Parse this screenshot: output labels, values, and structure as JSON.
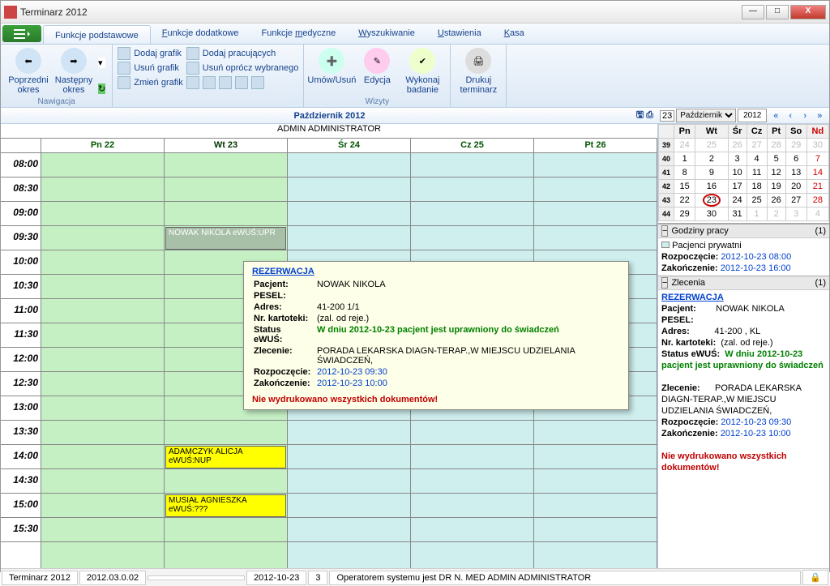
{
  "window": {
    "title": "Terminarz 2012"
  },
  "tabs": [
    "Funkcje podstawowe",
    "Funkcje dodatkowe",
    "Funkcje medyczne",
    "Wyszukiwanie",
    "Ustawienia",
    "Kasa"
  ],
  "ribbon": {
    "prev": "Poprzedni okres",
    "next": "Następny okres",
    "nav_label": "Nawigacja",
    "dodaj_grafik": "Dodaj grafik",
    "usun_grafik": "Usuń grafik",
    "zmien_grafik": "Zmień grafik",
    "dodaj_prac": "Dodaj pracujących",
    "usun_oprocz": "Usuń oprócz wybranego",
    "umow": "Umów/Usuń",
    "edycja": "Edycja",
    "wykonaj": "Wykonaj badanie",
    "drukuj": "Drukuj terminarz",
    "wizyty_label": "Wizyty"
  },
  "month_label": "Październik 2012",
  "admin_header": "ADMIN ADMINISTRATOR",
  "days": [
    "Pn 22",
    "Wt 23",
    "Śr 24",
    "Cz 25",
    "Pt 26"
  ],
  "times": [
    "08:00",
    "08:30",
    "09:00",
    "09:30",
    "10:00",
    "10:30",
    "11:00",
    "11:30",
    "12:00",
    "12:30",
    "13:00",
    "13:30",
    "14:00",
    "14:30",
    "15:00",
    "15:30"
  ],
  "appointments": [
    {
      "col": 1,
      "row": 3,
      "cls": "grey",
      "text": "NOWAK NIKOLA eWUŚ:UPR"
    },
    {
      "col": 1,
      "row": 12,
      "cls": "yellow",
      "text": "ADAMCZYK ALICJA eWUŚ:NUP"
    },
    {
      "col": 1,
      "row": 14,
      "cls": "yellow",
      "text": "MUSIAŁ AGNIESZKA eWUŚ:???"
    }
  ],
  "tooltip": {
    "title": "REZERWACJA",
    "pacjent_k": "Pacjent:",
    "pacjent_v": "NOWAK NIKOLA",
    "pesel_k": "PESEL:",
    "pesel_v": "",
    "adres_k": "Adres:",
    "adres_v": "41-200                                               1/1",
    "kart_k": "Nr. kartoteki:",
    "kart_v": "(zal. od reje.)",
    "ewus_k": "Status eWUŚ:",
    "ewus_v": "W dniu 2012-10-23 pacjent jest uprawniony do świadczeń",
    "zlec_k": "Zlecenie:",
    "zlec_v": "PORADA LEKARSKA DIAGN-TERAP.,W MIEJSCU UDZIELANIA ŚWIADCZEŃ,",
    "start_k": "Rozpoczęcie:",
    "start_v": "2012-10-23 09:30",
    "end_k": "Zakończenie:",
    "end_v": "2012-10-23 10:00",
    "warn": "Nie wydrukowano wszystkich dokumentów!"
  },
  "minical": {
    "date_selector_day": "23",
    "month": "Październik",
    "year": "2012",
    "dow": [
      "Pn",
      "Wt",
      "Śr",
      "Cz",
      "Pt",
      "So",
      "Nd"
    ],
    "weeks": [
      {
        "wk": "39",
        "days": [
          "24",
          "25",
          "26",
          "27",
          "28",
          "29",
          "30"
        ],
        "grey": true
      },
      {
        "wk": "40",
        "days": [
          "1",
          "2",
          "3",
          "4",
          "5",
          "6",
          "7"
        ]
      },
      {
        "wk": "41",
        "days": [
          "8",
          "9",
          "10",
          "11",
          "12",
          "13",
          "14"
        ]
      },
      {
        "wk": "42",
        "days": [
          "15",
          "16",
          "17",
          "18",
          "19",
          "20",
          "21"
        ]
      },
      {
        "wk": "43",
        "days": [
          "22",
          "23",
          "24",
          "25",
          "26",
          "27",
          "28"
        ],
        "today": 1
      },
      {
        "wk": "44",
        "days": [
          "29",
          "30",
          "31",
          "1",
          "2",
          "3",
          "4"
        ],
        "greyFrom": 3
      }
    ]
  },
  "godz": {
    "hdr": "Godziny pracy",
    "count": "(1)",
    "priv": "Pacjenci prywatni",
    "start_k": "Rozpoczęcie:",
    "start_v": "2012-10-23 08:00",
    "end_k": "Zakończenie:",
    "end_v": "2012-10-23 16:00"
  },
  "zlec": {
    "hdr": "Zlecenia",
    "count": "(1)",
    "title": "REZERWACJA",
    "pacjent_k": "Pacjent:",
    "pacjent_v": "NOWAK NIKOLA",
    "pesel_k": "PESEL:",
    "pesel_v": "",
    "adres_k": "Adres:",
    "adres_v": "41-200                              , KL",
    "kart_k": "Nr. kartoteki:",
    "kart_v": "(zal. od reje.)",
    "ewus_k": "Status eWUŚ:",
    "ewus_v": "W dniu 2012-10-23 pacjent jest uprawniony do świadczeń",
    "zlec_k": "Zlecenie:",
    "zlec_v": "PORADA LEKARSKA DIAGN-TERAP.,W MIEJSCU UDZIELANIA ŚWIADCZEŃ,",
    "start_k": "Rozpoczęcie:",
    "start_v": "2012-10-23 09:30",
    "end_k": "Zakończenie:",
    "end_v": "2012-10-23 10:00",
    "warn": "Nie wydrukowano wszystkich dokumentów!"
  },
  "status": {
    "app": "Terminarz 2012",
    "ver": "2012.03.0.02",
    "date": "2012-10-23",
    "num": "3",
    "oper": "Operatorem systemu jest DR N. MED ADMIN ADMINISTRATOR"
  }
}
